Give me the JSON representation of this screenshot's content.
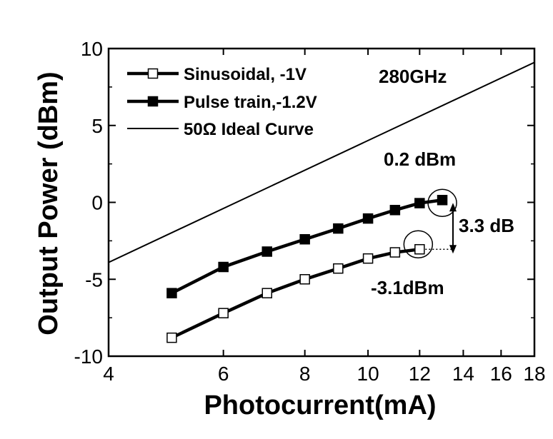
{
  "chart_data": {
    "type": "line",
    "title": "",
    "xlabel": "Photocurrent(mA)",
    "ylabel": "Output Power (dBm)",
    "x_scale": "log",
    "xlim": [
      4,
      18
    ],
    "ylim": [
      -10,
      10
    ],
    "x_ticks": [
      4,
      6,
      8,
      10,
      12,
      14,
      16,
      18
    ],
    "y_ticks": [
      -10,
      -5,
      0,
      5,
      10
    ],
    "x_tick_labels": [
      "4",
      "6",
      "8",
      "10",
      "12",
      "14",
      "16",
      "18"
    ],
    "y_tick_labels": [
      "-10",
      "-5",
      "0",
      "5",
      "10"
    ],
    "grid": false,
    "legend_position": "top-left",
    "series": [
      {
        "name": "Sinusoidal,   -1V",
        "marker": "open-square",
        "color": "#000000",
        "x": [
          5,
          6,
          7,
          8,
          9,
          10,
          11,
          12
        ],
        "y": [
          -8.8,
          -7.2,
          -5.9,
          -5.0,
          -4.3,
          -3.65,
          -3.25,
          -3.05
        ]
      },
      {
        "name": "Pulse train,-1.2V",
        "marker": "filled-square",
        "color": "#000000",
        "x": [
          5,
          6,
          7,
          8,
          9,
          10,
          11,
          12,
          13
        ],
        "y": [
          -5.9,
          -4.2,
          -3.2,
          -2.4,
          -1.7,
          -1.05,
          -0.5,
          -0.05,
          0.15
        ]
      },
      {
        "name": "50Ω Ideal Curve",
        "marker": "none",
        "color": "#000000",
        "x": [
          4,
          18
        ],
        "y": [
          -3.9,
          9.1
        ]
      }
    ],
    "annotations": [
      {
        "text": "280GHz"
      },
      {
        "text": "0.2 dBm"
      },
      {
        "text": "3.3 dB"
      },
      {
        "text": "-3.1dBm"
      }
    ]
  }
}
